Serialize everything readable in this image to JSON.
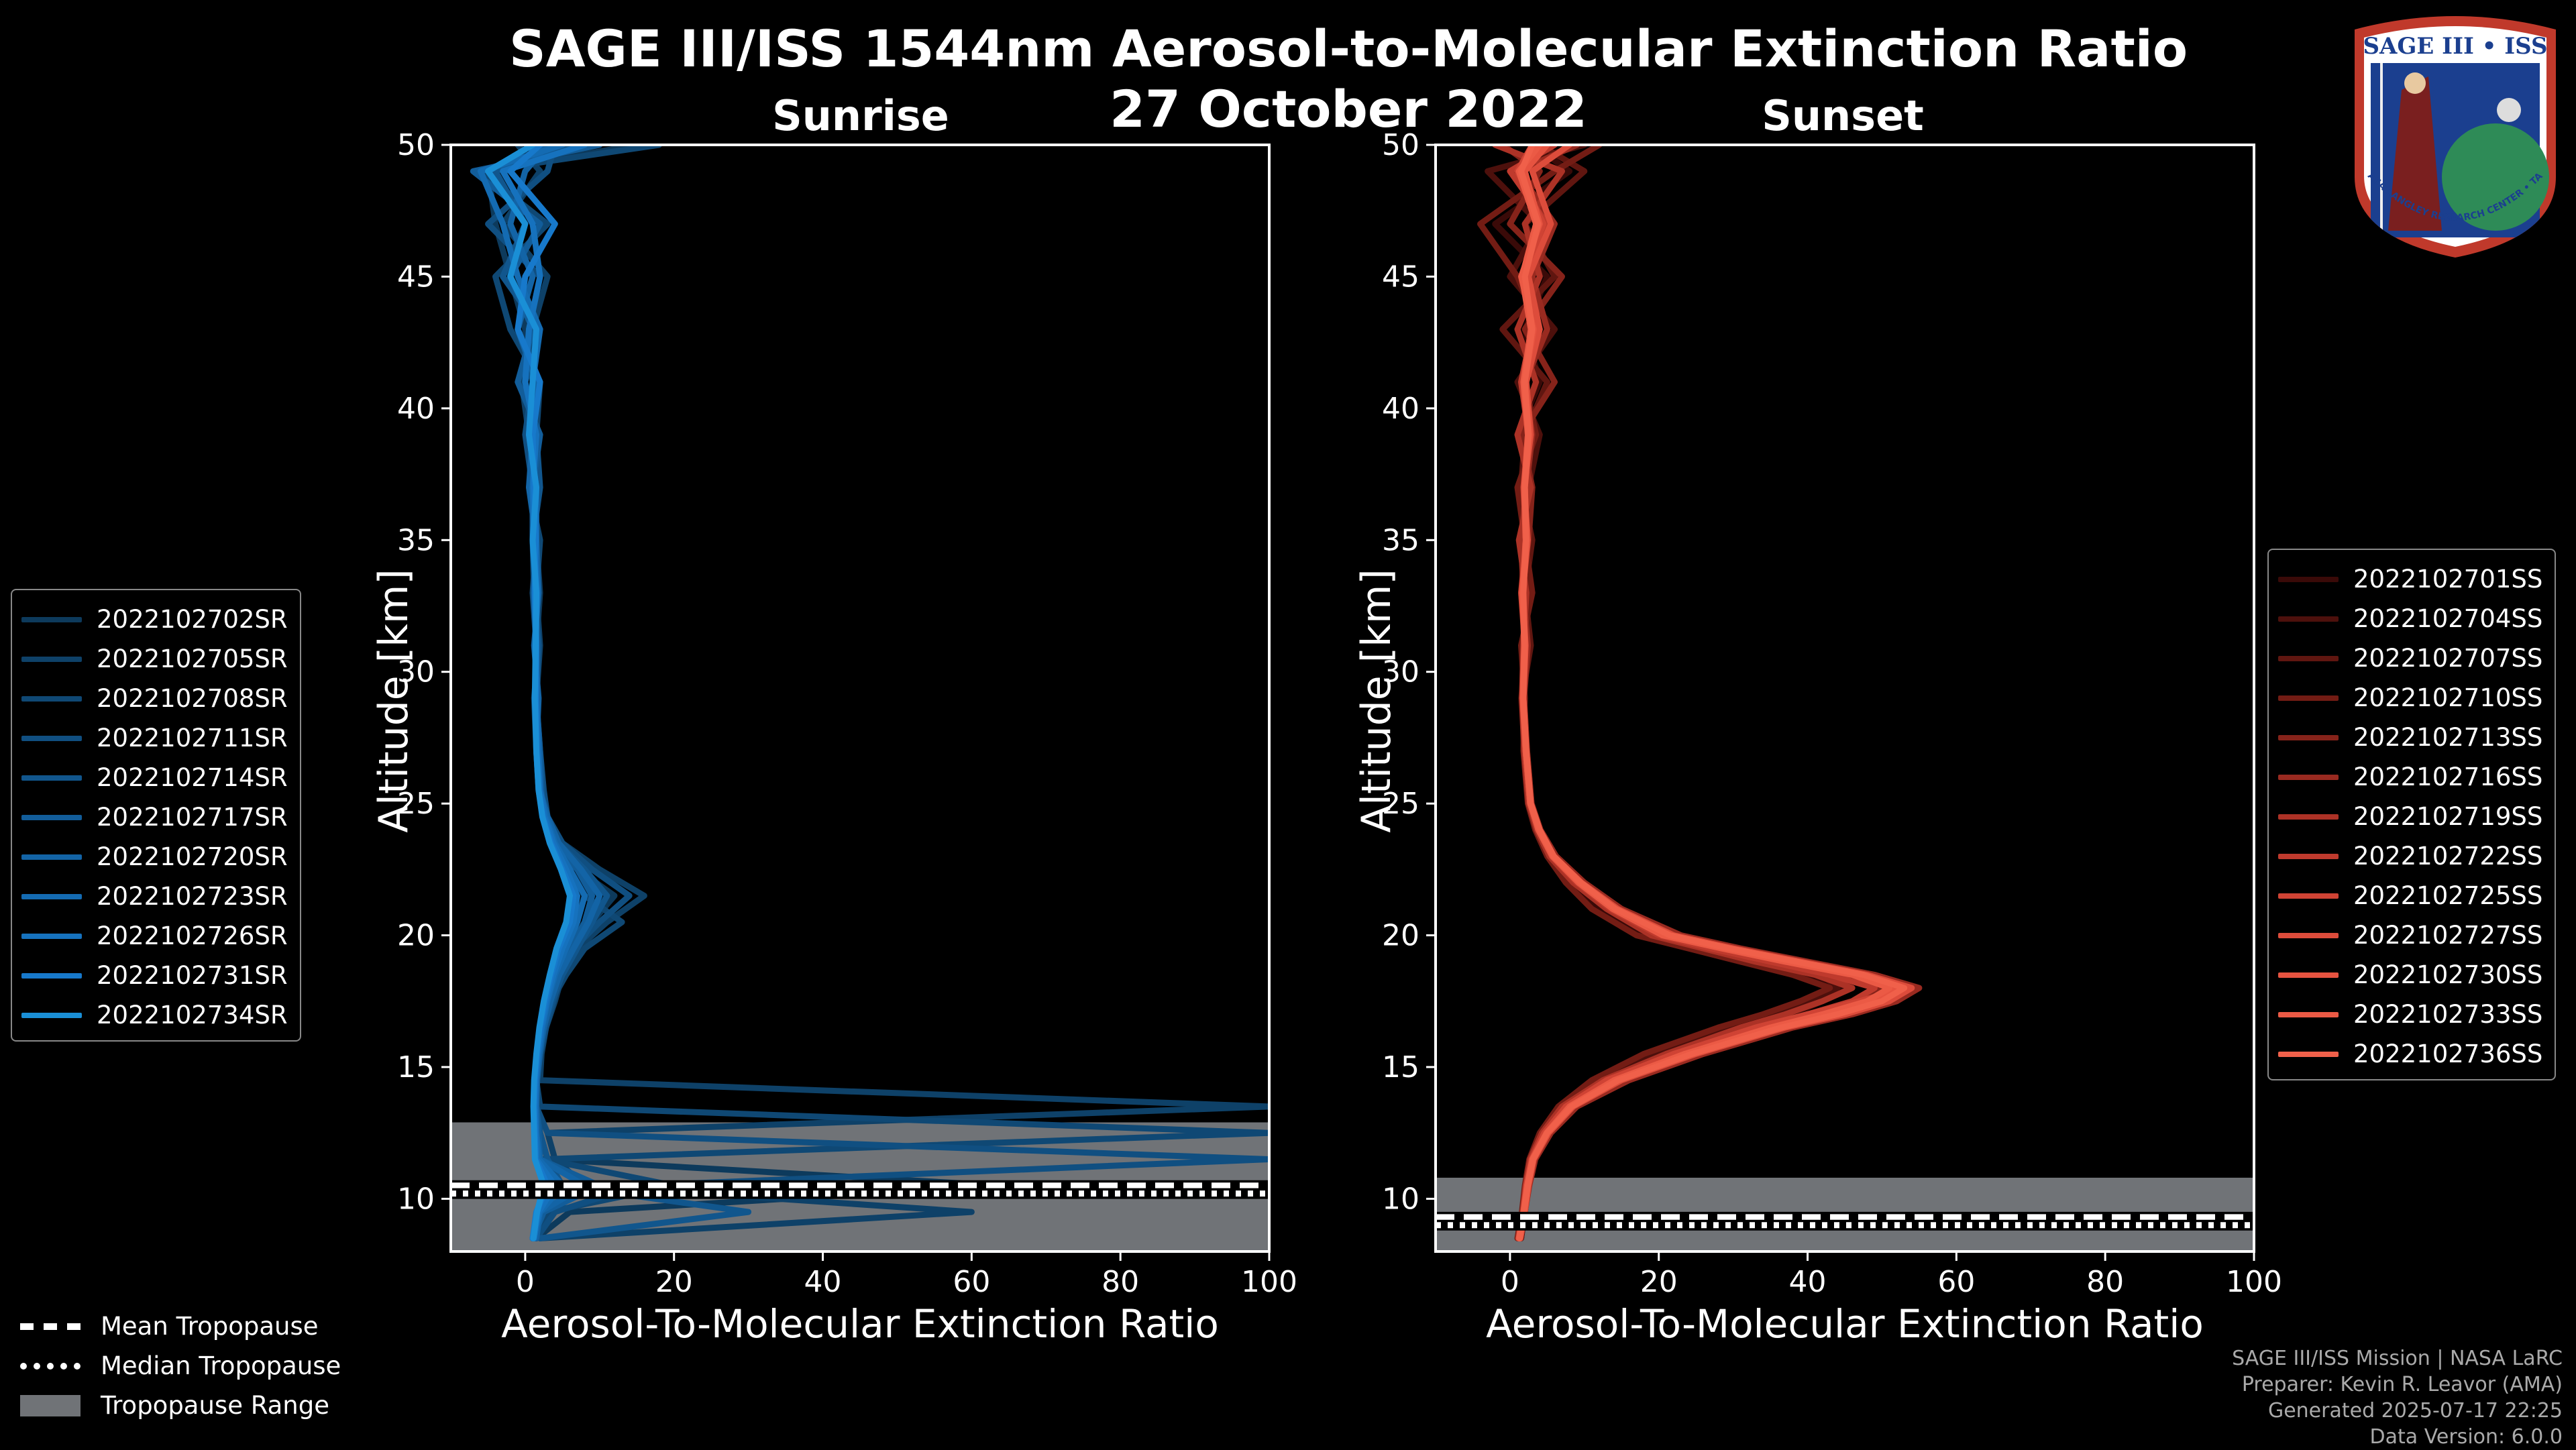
{
  "title": "SAGE III/ISS 1544nm Aerosol-to-Molecular Extinction Ratio",
  "date": "27 October 2022",
  "logo": {
    "top_text": "SAGE III • ISS",
    "ring_text": "BALL • NASA LANGLEY RESEARCH CENTER • TAS-I • ESA"
  },
  "credits": [
    "SAGE III/ISS Mission | NASA LaRC",
    "Preparer: Kevin R. Leavor (AMA)",
    "Generated 2025-07-17 22:25",
    "Data Version: 6.0.0"
  ],
  "trop_legend": {
    "mean": "Mean Tropopause",
    "median": "Median Tropopause",
    "range": "Tropopause Range"
  },
  "colors": {
    "background": "#000000",
    "sunrise": "#1a8fd6",
    "sunset": "#f0604a",
    "tropopause_range": "#707377"
  },
  "chart_data": [
    {
      "type": "line",
      "title": "Sunrise",
      "xlabel": "Aerosol-To-Molecular Extinction Ratio",
      "ylabel": "Altitude [km]",
      "xlim": [
        -10,
        100
      ],
      "ylim": [
        8,
        50
      ],
      "xticks": [
        0,
        20,
        40,
        60,
        80,
        100
      ],
      "yticks": [
        10,
        15,
        20,
        25,
        30,
        35,
        40,
        45,
        50
      ],
      "tropopause": {
        "mean": 10.5,
        "median": 10.2,
        "range": [
          8,
          12.9
        ]
      },
      "legend_position": "left",
      "y": [
        8.5,
        9.5,
        10.5,
        11.5,
        12.5,
        13.5,
        14.5,
        15.5,
        16.5,
        17.5,
        18.5,
        19.5,
        20.5,
        21.5,
        22.5,
        23.5,
        24.5,
        25.5,
        27,
        29,
        31,
        33,
        35,
        37,
        39,
        41,
        43,
        45,
        47,
        49,
        50
      ],
      "series": [
        {
          "name": "2022102702SR",
          "color": "#0d3a5c",
          "x": [
            1.5,
            6,
            64,
            3,
            2,
            1.5,
            1.5,
            1.8,
            2.5,
            3.5,
            4.5,
            6,
            9,
            12,
            7,
            4,
            2.5,
            2,
            1.5,
            1.5,
            1.5,
            2,
            1.5,
            1,
            1,
            0,
            0,
            -2,
            -4,
            -5,
            15
          ]
        },
        {
          "name": "2022102705SR",
          "color": "#0e4168",
          "x": [
            2,
            60,
            8,
            4,
            3,
            100,
            2,
            2.2,
            2.8,
            4,
            5,
            7,
            11,
            16,
            10,
            5,
            3,
            2.2,
            1.8,
            1.5,
            2,
            1.5,
            1,
            1.5,
            0.5,
            -0.5,
            1,
            3,
            -3,
            2,
            -1
          ]
        },
        {
          "name": "2022102708SR",
          "color": "#0f4874",
          "x": [
            1,
            3,
            20,
            2.5,
            100,
            2,
            1.5,
            2,
            2.5,
            3.5,
            5.5,
            8,
            13,
            8,
            6,
            4,
            2.5,
            2,
            1.5,
            1.2,
            1.8,
            1.5,
            2,
            0.5,
            1.5,
            2,
            -2,
            -4,
            3,
            -6,
            18
          ]
        },
        {
          "name": "2022102711SR",
          "color": "#104f81",
          "x": [
            1.5,
            4,
            15,
            100,
            3,
            1.5,
            1.5,
            2,
            2.8,
            3.8,
            4.8,
            6.5,
            10,
            14,
            9,
            5,
            3,
            2.5,
            2,
            1.5,
            1.5,
            1,
            1.5,
            1,
            0,
            1,
            0.5,
            2,
            -5,
            3,
            4
          ]
        },
        {
          "name": "2022102714SR",
          "color": "#11568d",
          "x": [
            2,
            30,
            5,
            3,
            2,
            1.5,
            1.5,
            1.8,
            2.6,
            3.6,
            5,
            7,
            9,
            11,
            8,
            4.5,
            3,
            2,
            1.8,
            1.5,
            1.8,
            1.2,
            1,
            2,
            1.5,
            0,
            2,
            -3,
            0,
            -4,
            6
          ]
        },
        {
          "name": "2022102717SR",
          "color": "#125d9a",
          "x": [
            1,
            2.5,
            10,
            2,
            1.8,
            1.5,
            1.6,
            2,
            2.4,
            3.2,
            4.2,
            6,
            8,
            9,
            7,
            4,
            2.5,
            2.2,
            2,
            1.5,
            1.5,
            1.5,
            1,
            1,
            2,
            -1,
            1,
            -2,
            2,
            -7,
            10
          ]
        },
        {
          "name": "2022102720SR",
          "color": "#1364a6",
          "x": [
            1.5,
            2,
            8,
            2,
            1.5,
            1.5,
            1.5,
            1.9,
            2.5,
            3.4,
            4.6,
            6.5,
            8.5,
            10,
            7.5,
            4.5,
            3,
            2,
            1.5,
            1.8,
            1.2,
            1.8,
            1.5,
            0.5,
            1,
            1.5,
            -1,
            1,
            -2,
            0,
            3
          ]
        },
        {
          "name": "2022102723SR",
          "color": "#146bb2",
          "x": [
            1,
            2,
            5,
            1.8,
            1.5,
            1.4,
            1.5,
            1.8,
            2.3,
            3,
            4,
            5.5,
            7,
            8,
            6,
            4,
            2.8,
            2,
            1.8,
            1.5,
            1.5,
            1.2,
            1.5,
            1.5,
            0.5,
            1,
            2,
            -1,
            -3,
            -6,
            5
          ]
        },
        {
          "name": "2022102726SR",
          "color": "#1672be",
          "x": [
            1.2,
            1.8,
            4,
            1.5,
            1.4,
            1.3,
            1.4,
            1.7,
            2.2,
            2.9,
            3.8,
            5,
            6.5,
            7,
            5.5,
            3.8,
            2.6,
            2,
            1.6,
            1.5,
            1.4,
            1.6,
            1.2,
            1,
            1.5,
            0,
            0.5,
            2,
            1,
            -3,
            8
          ]
        },
        {
          "name": "2022102731SR",
          "color": "#1779cb",
          "x": [
            1,
            1.5,
            3,
            1.4,
            1.3,
            1.2,
            1.3,
            1.6,
            2,
            2.7,
            3.5,
            4.5,
            6,
            6.5,
            5,
            3.5,
            2.4,
            1.8,
            1.5,
            1.4,
            1.5,
            1.3,
            1.4,
            1.2,
            1,
            2,
            -1,
            0,
            4,
            -2,
            2
          ]
        },
        {
          "name": "2022102734SR",
          "color": "#1a8fd6",
          "x": [
            1.1,
            1.6,
            2.5,
            1.3,
            1.2,
            1.1,
            1.2,
            1.5,
            1.9,
            2.5,
            3.3,
            4.2,
            5.5,
            6,
            4.8,
            3.3,
            2.3,
            1.8,
            1.5,
            1.3,
            1.4,
            1.5,
            1,
            1.5,
            0.5,
            1,
            1.5,
            -2,
            0,
            -5,
            1
          ]
        }
      ]
    },
    {
      "type": "line",
      "title": "Sunset",
      "xlabel": "Aerosol-To-Molecular Extinction Ratio",
      "ylabel": "Altitude [km]",
      "xlim": [
        -10,
        100
      ],
      "ylim": [
        8,
        50
      ],
      "xticks": [
        0,
        20,
        40,
        60,
        80,
        100
      ],
      "yticks": [
        10,
        15,
        20,
        25,
        30,
        35,
        40,
        45,
        50
      ],
      "tropopause": {
        "mean": 9.3,
        "median": 9.0,
        "range": [
          8,
          10.8
        ]
      },
      "legend_position": "right",
      "y": [
        8.5,
        9.5,
        10.5,
        11.5,
        12.5,
        13.5,
        14.5,
        15.5,
        16.5,
        17,
        17.5,
        18,
        18.5,
        19,
        19.5,
        20,
        21,
        22,
        23,
        24,
        25,
        27,
        29,
        31,
        33,
        35,
        37,
        39,
        41,
        43,
        45,
        47,
        49,
        50
      ],
      "series": [
        {
          "name": "2022102701SS",
          "color": "#3a0a08",
          "x": [
            1.5,
            2,
            2.5,
            3,
            5,
            8,
            14,
            22,
            32,
            38,
            42,
            45,
            40,
            32,
            25,
            18,
            12,
            8,
            5,
            3.5,
            2.5,
            2,
            1.5,
            2.5,
            1.5,
            2,
            3,
            1,
            4,
            2,
            5,
            -2,
            8,
            3
          ]
        },
        {
          "name": "2022102704SS",
          "color": "#4d100c",
          "x": [
            1.2,
            1.8,
            2.2,
            2.8,
            4.5,
            7,
            12,
            20,
            30,
            36,
            40,
            44,
            42,
            35,
            28,
            20,
            13,
            9,
            5.5,
            3.8,
            2.6,
            2,
            1.8,
            2,
            2.5,
            1.5,
            2.5,
            4,
            1,
            6,
            0,
            4,
            -3,
            10
          ]
        },
        {
          "name": "2022102707SS",
          "color": "#601610",
          "x": [
            1.5,
            2,
            2.5,
            3.2,
            5.2,
            8.5,
            15,
            24,
            35,
            42,
            48,
            52,
            46,
            38,
            30,
            22,
            15,
            10,
            6,
            4,
            2.8,
            2.2,
            1.6,
            2.8,
            2,
            3,
            1.5,
            2,
            5,
            -1,
            6,
            2,
            10,
            4
          ]
        },
        {
          "name": "2022102710SS",
          "color": "#731c14",
          "x": [
            1,
            1.6,
            2,
            2.6,
            4,
            6.5,
            11,
            18,
            28,
            34,
            39,
            43,
            38,
            31,
            24,
            17,
            11,
            7.5,
            5,
            3.4,
            2.4,
            1.8,
            2,
            1.5,
            3,
            2,
            1,
            3.5,
            2,
            4,
            1,
            -4,
            6,
            12
          ]
        },
        {
          "name": "2022102713SS",
          "color": "#86231a",
          "x": [
            1.3,
            1.9,
            2.4,
            3,
            5,
            8,
            14,
            23,
            34,
            41,
            47,
            50,
            44,
            36,
            28,
            21,
            14,
            9.5,
            5.8,
            3.9,
            2.7,
            2.1,
            1.7,
            2.2,
            1.5,
            2.5,
            3,
            1.5,
            6,
            2,
            7,
            0,
            4,
            -1
          ]
        },
        {
          "name": "2022102716SS",
          "color": "#992a20",
          "x": [
            1.4,
            2,
            2.6,
            3.4,
            5.5,
            9,
            16,
            26,
            38,
            46,
            52,
            55,
            49,
            40,
            31,
            23,
            15,
            10,
            6.2,
            4.1,
            2.9,
            2.3,
            1.9,
            2.4,
            1.8,
            1.5,
            2.2,
            3,
            2,
            5,
            3,
            6,
            1,
            9
          ]
        },
        {
          "name": "2022102719SS",
          "color": "#ac3226",
          "x": [
            1.1,
            1.7,
            2.1,
            2.7,
            4.3,
            7,
            12.5,
            21,
            31,
            37,
            42,
            46,
            41,
            33,
            26,
            19,
            13,
            8.5,
            5.3,
            3.6,
            2.5,
            1.9,
            1.6,
            1.8,
            2.2,
            1.2,
            2.8,
            1,
            3.5,
            1,
            4,
            2,
            7,
            -2
          ]
        },
        {
          "name": "2022102722SS",
          "color": "#bf3a2d",
          "x": [
            1.3,
            1.9,
            2.3,
            3,
            4.8,
            8,
            14,
            23,
            34,
            40,
            46,
            49,
            43,
            35,
            27,
            20,
            13.5,
            9,
            5.6,
            3.8,
            2.7,
            2.1,
            1.8,
            2,
            1.5,
            2.2,
            1.8,
            2.5,
            1.5,
            3,
            2.5,
            5,
            0,
            6
          ]
        },
        {
          "name": "2022102725SS",
          "color": "#cf4334",
          "x": [
            1.2,
            1.8,
            2.2,
            2.9,
            4.6,
            7.5,
            13,
            22,
            33,
            40,
            47,
            53,
            48,
            39,
            30,
            22,
            14,
            9.3,
            5.7,
            3.9,
            2.7,
            2.1,
            1.7,
            2,
            1.6,
            2.3,
            2,
            2.7,
            1.8,
            3.5,
            2,
            4.5,
            1,
            3
          ]
        },
        {
          "name": "2022102727SS",
          "color": "#dd4c3b",
          "x": [
            1.4,
            2,
            2.5,
            3.2,
            5.2,
            8.5,
            15,
            25,
            37,
            45,
            51,
            54,
            48,
            39,
            30,
            22,
            14.5,
            9.6,
            5.9,
            4,
            2.8,
            2.2,
            1.8,
            2.1,
            1.7,
            2.4,
            1.9,
            2.8,
            2.2,
            4,
            2.5,
            5.5,
            3,
            8
          ]
        },
        {
          "name": "2022102730SS",
          "color": "#e65340",
          "x": [
            1.3,
            1.9,
            2.4,
            3.1,
            5,
            8.2,
            14.5,
            24,
            36,
            43,
            49,
            52,
            47,
            38,
            29,
            21,
            14,
            9.4,
            5.8,
            3.9,
            2.7,
            2.1,
            1.8,
            2,
            1.6,
            2.2,
            2,
            2.6,
            2,
            3.2,
            1.5,
            4,
            2,
            5
          ]
        },
        {
          "name": "2022102733SS",
          "color": "#eb5a45",
          "x": [
            1.2,
            1.8,
            2.3,
            3,
            4.9,
            8,
            14,
            23.5,
            35,
            42,
            48,
            51,
            46,
            37,
            28.5,
            20.5,
            13.8,
            9.2,
            5.7,
            3.8,
            2.7,
            2.1,
            1.7,
            1.9,
            1.7,
            2.1,
            1.9,
            2.4,
            1.8,
            2.8,
            1.6,
            3.5,
            1.2,
            4
          ]
        },
        {
          "name": "2022102736SS",
          "color": "#f0604a",
          "x": [
            1.3,
            1.9,
            2.4,
            3.1,
            5,
            8.3,
            14.6,
            24.5,
            36.5,
            44,
            50,
            53,
            47.5,
            38.5,
            29.5,
            21.5,
            14.2,
            9.5,
            5.9,
            4,
            2.8,
            2.2,
            1.8,
            2,
            1.8,
            2.2,
            2,
            2.5,
            2,
            3,
            2,
            3.8,
            1.5,
            3
          ]
        }
      ]
    }
  ]
}
